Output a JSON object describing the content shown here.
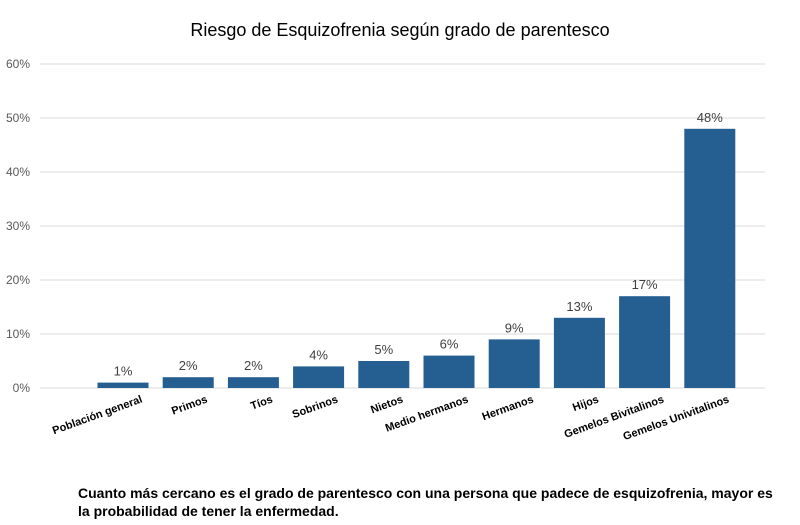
{
  "chart_data": {
    "type": "bar",
    "title": "Riesgo de Esquizofrenia según grado de parentesco",
    "xlabel": "",
    "ylabel": "",
    "ylim": [
      0,
      60
    ],
    "yticks": [
      "0%",
      "10%",
      "20%",
      "30%",
      "40%",
      "50%",
      "60%"
    ],
    "grid": true,
    "categories": [
      "Población general",
      "Primos",
      "Tíos",
      "Sobrinos",
      "Nietos",
      "Medio hermanos",
      "Hermanos",
      "Hijos",
      "Gemelos Bivitalinos",
      "Gemelos Univitalinos"
    ],
    "values": [
      1,
      2,
      2,
      4,
      5,
      6,
      9,
      13,
      17,
      48
    ],
    "data_labels": [
      "1%",
      "2%",
      "2%",
      "4%",
      "5%",
      "6%",
      "9%",
      "13%",
      "17%",
      "48%"
    ],
    "bar_color": "#255E91",
    "grid_color": "#D9D9D9"
  },
  "caption": "Cuanto más cercano es el grado de parentesco con una persona que padece de esquizofrenia, mayor es la probabilidad de tener la enfermedad."
}
